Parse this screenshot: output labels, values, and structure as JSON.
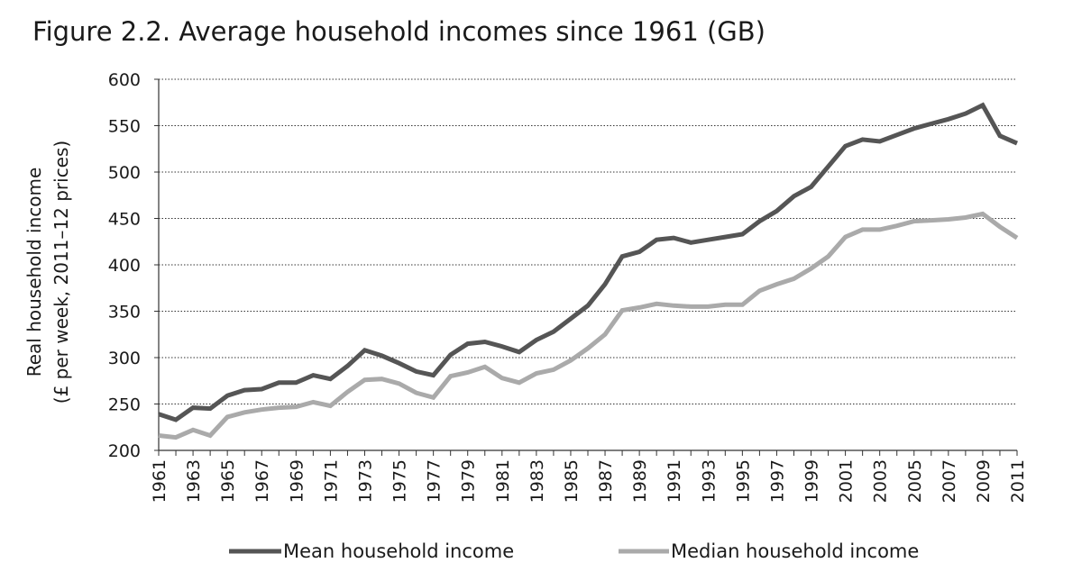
{
  "title": "Figure 2.2. Average household incomes since 1961 (GB)",
  "chart_data": {
    "type": "line",
    "title": "Figure 2.2. Average household incomes since 1961 (GB)",
    "ylabel_lines": [
      "Real household income",
      "(£ per week, 2011–12 prices)"
    ],
    "xlabel": "",
    "ylim": [
      200,
      600
    ],
    "yticks": [
      200,
      250,
      300,
      350,
      400,
      450,
      500,
      550,
      600
    ],
    "xlim": [
      1961,
      2011
    ],
    "xticks": [
      1961,
      1963,
      1965,
      1967,
      1969,
      1971,
      1973,
      1975,
      1977,
      1979,
      1981,
      1983,
      1985,
      1987,
      1989,
      1991,
      1993,
      1995,
      1997,
      1999,
      2001,
      2003,
      2005,
      2007,
      2009,
      2011
    ],
    "grid": "horizontal dotted",
    "legend_position": "bottom",
    "x": [
      1961,
      1962,
      1963,
      1964,
      1965,
      1966,
      1967,
      1968,
      1969,
      1970,
      1971,
      1972,
      1973,
      1974,
      1975,
      1976,
      1977,
      1978,
      1979,
      1980,
      1981,
      1982,
      1983,
      1984,
      1985,
      1986,
      1987,
      1988,
      1989,
      1990,
      1991,
      1992,
      1993,
      1994,
      1995,
      1996,
      1997,
      1998,
      1999,
      2000,
      2001,
      2002,
      2003,
      2004,
      2005,
      2006,
      2007,
      2008,
      2009,
      2010,
      2011
    ],
    "series": [
      {
        "name": "Mean household income",
        "color": "#555555",
        "values": [
          239,
          233,
          246,
          245,
          259,
          265,
          266,
          273,
          273,
          281,
          277,
          291,
          308,
          302,
          294,
          285,
          281,
          303,
          315,
          317,
          312,
          306,
          319,
          328,
          342,
          356,
          379,
          409,
          414,
          427,
          429,
          424,
          427,
          430,
          433,
          447,
          458,
          474,
          484,
          506,
          528,
          535,
          533,
          540,
          547,
          552,
          557,
          563,
          572,
          539,
          531
        ]
      },
      {
        "name": "Median household income",
        "color": "#aaaaaa",
        "values": [
          216,
          214,
          222,
          216,
          236,
          241,
          244,
          246,
          247,
          252,
          248,
          263,
          276,
          277,
          272,
          262,
          257,
          280,
          284,
          290,
          278,
          273,
          283,
          287,
          297,
          310,
          325,
          351,
          354,
          358,
          356,
          355,
          355,
          357,
          357,
          372,
          379,
          385,
          396,
          409,
          430,
          438,
          438,
          442,
          447,
          448,
          449,
          451,
          455,
          441,
          429
        ]
      }
    ]
  }
}
